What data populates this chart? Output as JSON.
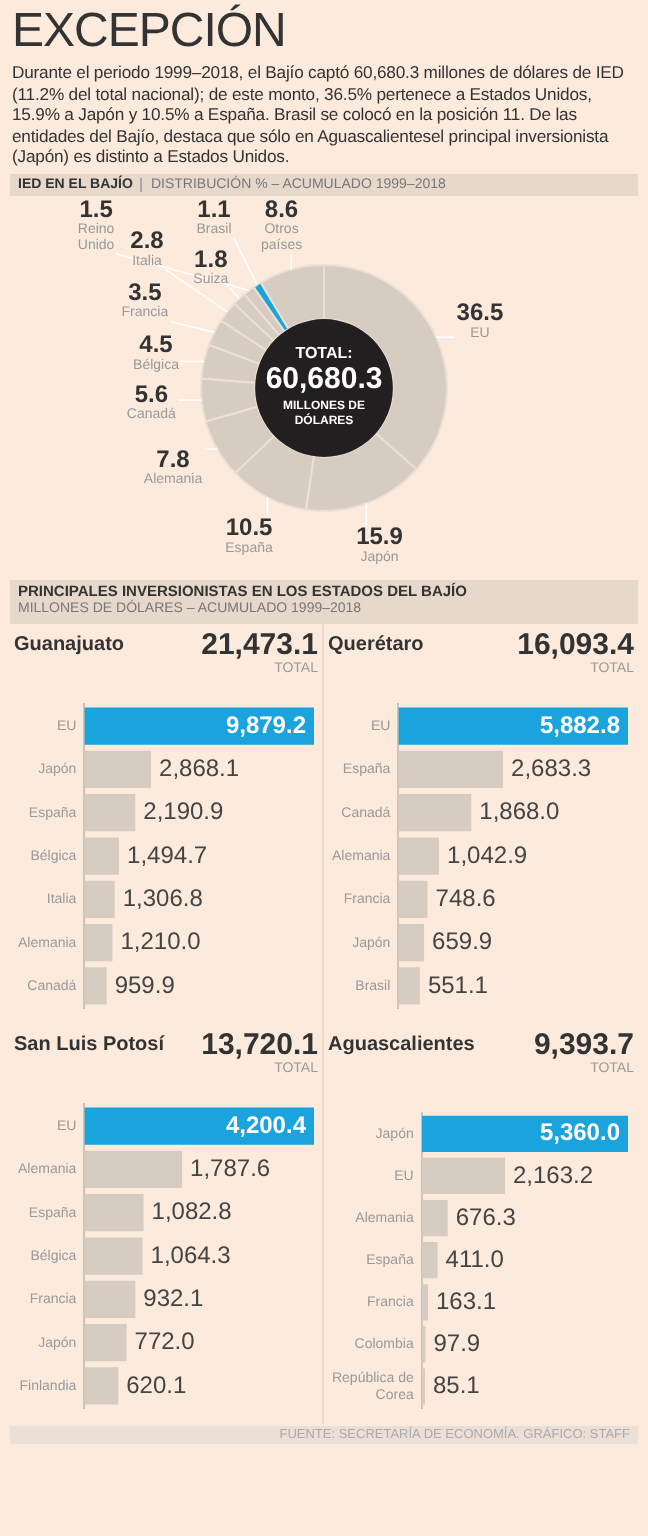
{
  "chart_data": [
    {
      "type": "donut",
      "title": "EXCEPCIÓN",
      "subtitle": "Durante el periodo 1999–2018, el Bajío captó 60,680.3 millones de dólares de IED (11.2% del total nacional); de este monto, 36.5% pertenece a Estados Unidos, 15.9% a Japón y 10.5% a España. Brasil se colocó en la posición 11. De las entidades del Bajío, destaca que sólo en Aguascalientesel principal inversionista (Japón) es distinto a Estados Unidos.",
      "categories": [
        "EU",
        "Japón",
        "España",
        "Alemania",
        "Canadá",
        "Bélgica",
        "Francia",
        "Italia",
        "Suiza",
        "Reino Unido",
        "Brasil",
        "Otros países"
      ],
      "values": [
        36.5,
        15.9,
        10.5,
        7.8,
        5.6,
        4.5,
        3.5,
        2.8,
        1.8,
        1.5,
        1.1,
        8.6
      ],
      "colors": [
        "#d6ccc2",
        "#d6ccc2",
        "#d6ccc2",
        "#d6ccc2",
        "#d6ccc2",
        "#d6ccc2",
        "#d6ccc2",
        "#d6ccc2",
        "#d6ccc2",
        "#d6ccc2",
        "#1aa3dc",
        "#d6ccc2"
      ],
      "data_labels": true,
      "annotations": [
        "IED EN EL BAJÍO",
        "DISTRIBUCIÓN % – ACUMULADO 1999–2018",
        "TOTAL:",
        "60,680.3",
        "MILLONES DE DÓLARES"
      ]
    },
    {
      "type": "bar",
      "orientation": "horizontal",
      "title": "Guanajuato",
      "categories": [
        "EU",
        "Japón",
        "España",
        "Bélgica",
        "Italia",
        "Alemania",
        "Canadá"
      ],
      "values": [
        9879.2,
        2868.1,
        2190.9,
        1494.7,
        1306.8,
        1210.0,
        959.9
      ],
      "colors": [
        "#1aa3dc",
        "#d6ccc2",
        "#d6ccc2",
        "#d6ccc2",
        "#d6ccc2",
        "#d6ccc2",
        "#d6ccc2"
      ],
      "value_labels": [
        "9,879.2",
        "2,868.1",
        "2,190.9",
        "1,494.7",
        "1,306.8",
        "1,210.0",
        "959.9"
      ],
      "annotations": [
        "PRINCIPALES INVERSIONISTAS EN LOS ESTADOS DEL BAJÍO",
        "MILLONES DE DÓLARES – ACUMULADO 1999–2018",
        "21,473.1",
        "TOTAL"
      ]
    },
    {
      "type": "bar",
      "orientation": "horizontal",
      "title": "Querétaro",
      "categories": [
        "EU",
        "España",
        "Canadá",
        "Alemania",
        "Francia",
        "Japón",
        "Brasil"
      ],
      "values": [
        5882.8,
        2683.3,
        1868.0,
        1042.9,
        748.6,
        659.9,
        551.1
      ],
      "colors": [
        "#1aa3dc",
        "#d6ccc2",
        "#d6ccc2",
        "#d6ccc2",
        "#d6ccc2",
        "#d6ccc2",
        "#d6ccc2"
      ],
      "value_labels": [
        "5,882.8",
        "2,683.3",
        "1,868.0",
        "1,042.9",
        "748.6",
        "659.9",
        "551.1"
      ],
      "annotations": [
        "16,093.4",
        "TOTAL"
      ]
    },
    {
      "type": "bar",
      "orientation": "horizontal",
      "title": "San Luis Potosí",
      "categories": [
        "EU",
        "Alemania",
        "España",
        "Bélgica",
        "Francia",
        "Japón",
        "Finlandia"
      ],
      "values": [
        4200.4,
        1787.6,
        1082.8,
        1064.3,
        932.1,
        772.0,
        620.1
      ],
      "colors": [
        "#1aa3dc",
        "#d6ccc2",
        "#d6ccc2",
        "#d6ccc2",
        "#d6ccc2",
        "#d6ccc2",
        "#d6ccc2"
      ],
      "value_labels": [
        "4,200.4",
        "1,787.6",
        "1,082.8",
        "1,064.3",
        "932.1",
        "772.0",
        "620.1"
      ],
      "annotations": [
        "13,720.1",
        "TOTAL"
      ]
    },
    {
      "type": "bar",
      "orientation": "horizontal",
      "title": "Aguascalientes",
      "categories": [
        "Japón",
        "EU",
        "Alemania",
        "España",
        "Francia",
        "Colombia",
        "República de Corea"
      ],
      "values": [
        5360.0,
        2163.2,
        676.3,
        411.0,
        163.1,
        97.9,
        85.1
      ],
      "colors": [
        "#1aa3dc",
        "#d6ccc2",
        "#d6ccc2",
        "#d6ccc2",
        "#d6ccc2",
        "#d6ccc2",
        "#d6ccc2"
      ],
      "value_labels": [
        "5,360.0",
        "2,163.2",
        "676.3",
        "411.0",
        "163.1",
        "97.9",
        "85.1"
      ],
      "annotations": [
        "9,393.7",
        "TOTAL",
        "FUENTE: SECRETARÍA DE ECONOMÍA. GRÁFICO: STAFF"
      ]
    }
  ]
}
